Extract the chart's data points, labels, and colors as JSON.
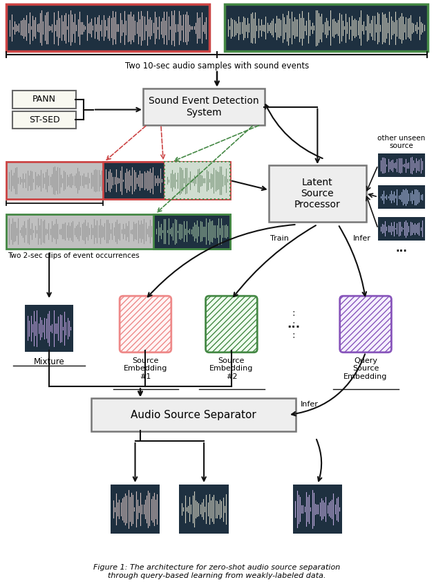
{
  "bg_color": "#ffffff",
  "dark_bg": "#1e3040",
  "waveform_pink": "#e8d0cc",
  "waveform_cream": "#e8e4d0",
  "waveform_purple": "#c8a8e8",
  "waveform_light_purple": "#d0b8f0",
  "red_border": "#cc4444",
  "green_border": "#448844",
  "purple_border": "#8855bb",
  "pink_border": "#ee8888",
  "box_fill": "#e8e8e8",
  "box_border": "#777777",
  "arrow_color": "#111111",
  "caption": "Figure 1: The architecture for zero-shot audio source\nseparation through query-based learning from\nweakly-labeled data.",
  "top_label": "Two 10-sec audio samples with sound events",
  "mid_label": "Two 2-sec clips of event occurrences",
  "train_label": "Train",
  "infer_label1": "Infer",
  "infer_label2": "Infer",
  "other_label": "other unseen\nsource",
  "mixture_label": "Mixture",
  "se1_label": "Source\nEmbedding\n#1",
  "se2_label": "Source\nEmbedding\n#2",
  "query_label": "Query\nSource\nEmbedding",
  "separator_label": "Audio Source Separator",
  "sed_label": "Sound Event Detection\nSystem",
  "lsp_label": "Latent\nSource\nProcessor",
  "pann_label": "PANN",
  "stsed_label": "ST-SED"
}
